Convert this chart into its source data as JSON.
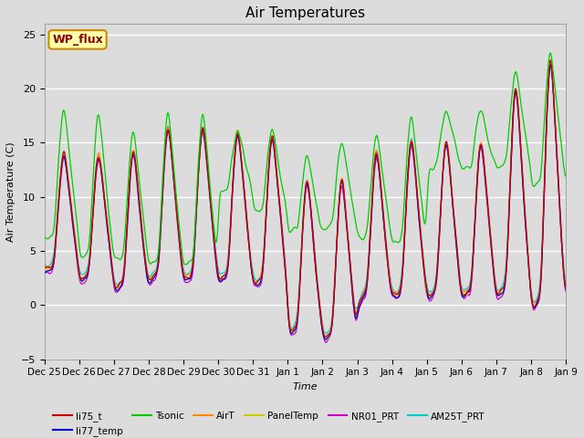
{
  "title": "Air Temperatures",
  "xlabel": "Time",
  "ylabel": "Air Temperature (C)",
  "ylim": [
    -5,
    26
  ],
  "yticks": [
    -5,
    0,
    5,
    10,
    15,
    20,
    25
  ],
  "background_color": "#dcdcdc",
  "plot_bg_color": "#dcdcdc",
  "legend_entries": [
    "li75_t",
    "li77_temp",
    "Tsonic",
    "AirT",
    "PanelTemp",
    "NR01_PRT",
    "AM25T_PRT"
  ],
  "legend_colors": [
    "#cc0000",
    "#0000cc",
    "#00cc00",
    "#ff8800",
    "#cccc00",
    "#cc00cc",
    "#00cccc"
  ],
  "annotation_text": "WP_flux",
  "annotation_color": "#880000",
  "annotation_bg": "#ffffaa",
  "annotation_border": "#cc8800",
  "x_tick_labels": [
    "Dec 25",
    "Dec 26",
    "Dec 27",
    "Dec 28",
    "Dec 29",
    "Dec 30",
    "Dec 31",
    "Jan 1",
    "Jan 2",
    "Jan 3",
    "Jan 4",
    "Jan 5",
    "Jan 6",
    "Jan 7",
    "Jan 8",
    "Jan 9"
  ],
  "n_points": 1440,
  "seed": 42,
  "figsize": [
    6.4,
    4.8
  ],
  "dpi": 100
}
